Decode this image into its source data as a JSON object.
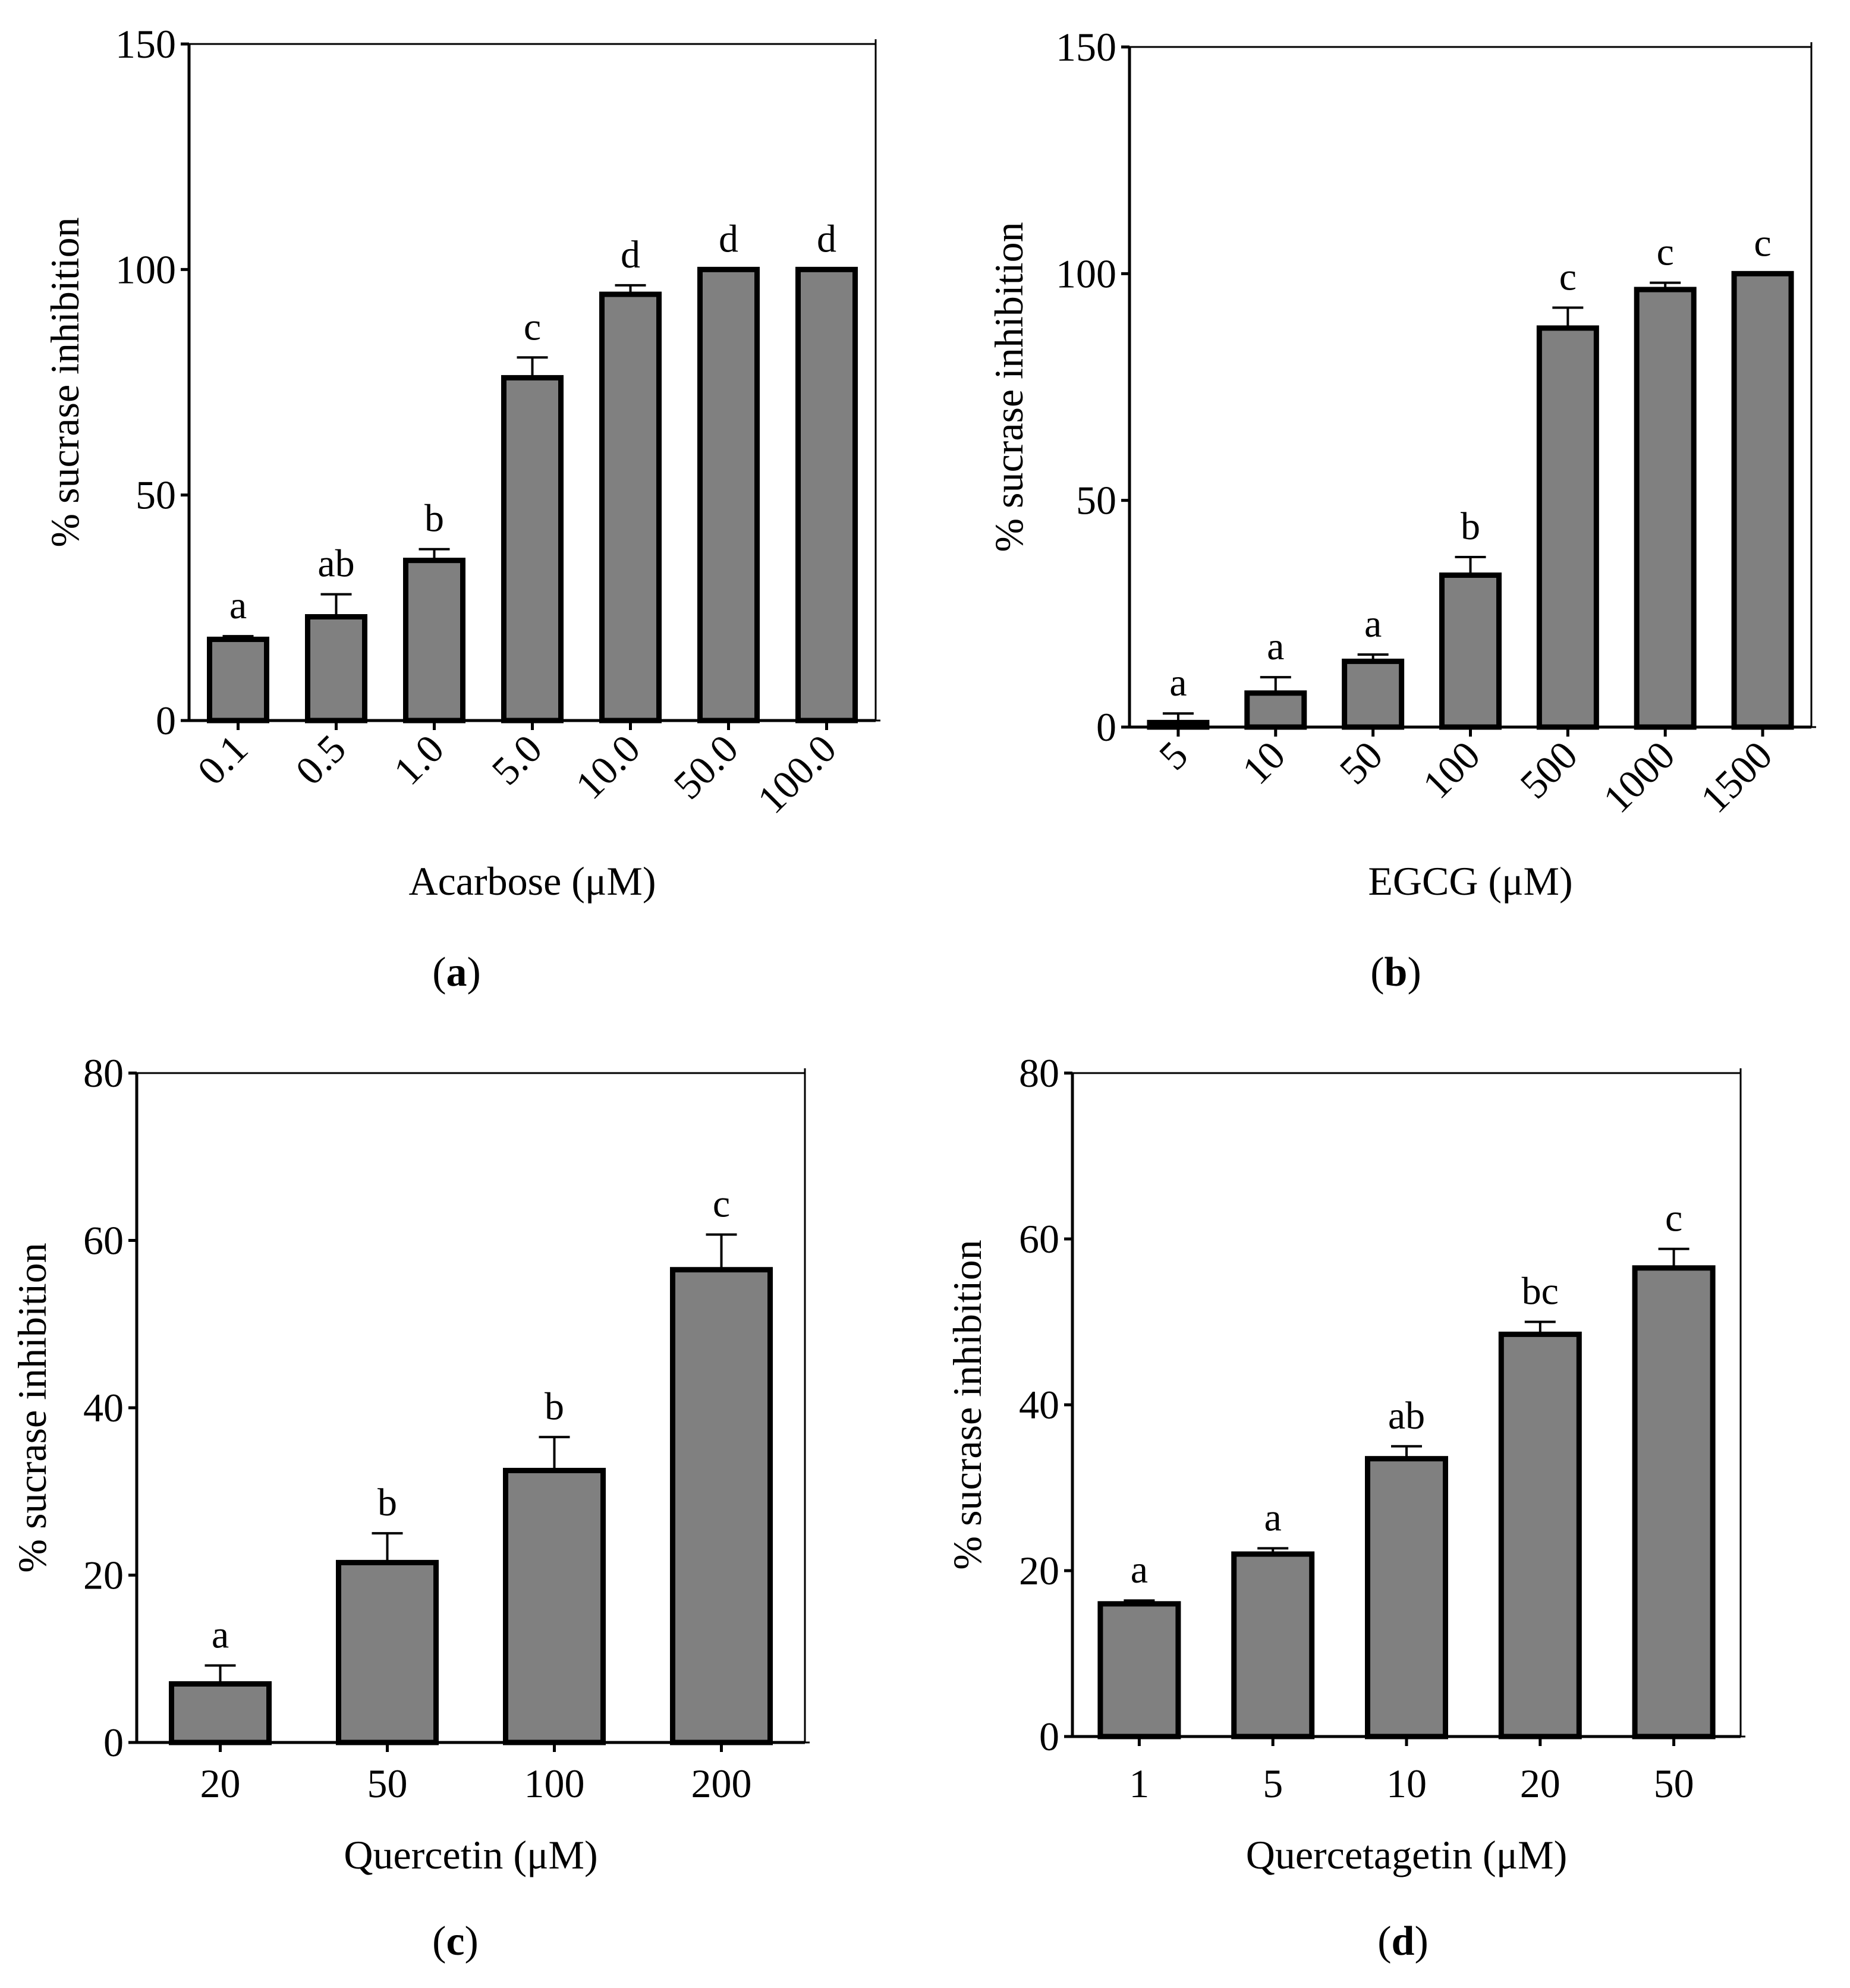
{
  "chart_data": [
    {
      "type": "bar",
      "panel": "a",
      "categories": [
        "0.1",
        "0.5",
        "1.0",
        "5.0",
        "10.0",
        "50.0",
        "100.0"
      ],
      "values": [
        18,
        23,
        35.5,
        76,
        94.5,
        100,
        100
      ],
      "errors": [
        0.7,
        5,
        2.5,
        4.5,
        2,
        0,
        0
      ],
      "significance": [
        "a",
        "ab",
        "b",
        "c",
        "d",
        "d",
        "d"
      ],
      "xlabel": "Acarbose (μM)",
      "ylabel": "% sucrase inhibition",
      "ylim": [
        0,
        150
      ],
      "yticks": [
        0,
        50,
        100,
        150
      ],
      "caption_prefix": "(",
      "caption_letter": "a",
      "caption_suffix": ")"
    },
    {
      "type": "bar",
      "panel": "b",
      "categories": [
        "5",
        "10",
        "50",
        "100",
        "500",
        "1000",
        "1500"
      ],
      "values": [
        1,
        7.5,
        14.5,
        33.5,
        88,
        96.5,
        100
      ],
      "errors": [
        2,
        3.5,
        1.5,
        4,
        4.5,
        1.5,
        0
      ],
      "significance": [
        "a",
        "a",
        "a",
        "b",
        "c",
        "c",
        "c"
      ],
      "xlabel": "EGCG (μM)",
      "ylabel": "% sucrase inhibition",
      "ylim": [
        0,
        150
      ],
      "yticks": [
        0,
        50,
        100,
        150
      ],
      "caption_prefix": "(",
      "caption_letter": "b",
      "caption_suffix": ")"
    },
    {
      "type": "bar",
      "panel": "c",
      "categories": [
        "20",
        "50",
        "100",
        "200"
      ],
      "values": [
        7,
        21.5,
        32.5,
        56.5
      ],
      "errors": [
        2.2,
        3.5,
        4,
        4.2
      ],
      "significance": [
        "a",
        "b",
        "b",
        "c"
      ],
      "xlabel": "Quercetin (μM)",
      "ylabel": "% sucrase inhibition",
      "ylim": [
        0,
        80
      ],
      "yticks": [
        0,
        20,
        40,
        60,
        80
      ],
      "caption_prefix": "(",
      "caption_letter": "c",
      "caption_suffix": ")"
    },
    {
      "type": "bar",
      "panel": "d",
      "categories": [
        "1",
        "5",
        "10",
        "20",
        "50"
      ],
      "values": [
        16,
        22,
        33.5,
        48.5,
        56.5
      ],
      "errors": [
        0.4,
        0.7,
        1.5,
        1.5,
        2.3
      ],
      "significance": [
        "a",
        "a",
        "ab",
        "bc",
        "c"
      ],
      "xlabel": "Quercetagetin (μM)",
      "ylabel": "% sucrase inhibition",
      "ylim": [
        0,
        80
      ],
      "yticks": [
        0,
        20,
        40,
        60,
        80
      ],
      "caption_prefix": "(",
      "caption_letter": "d",
      "caption_suffix": ")"
    }
  ],
  "colors": {
    "bar_fill": "#808080",
    "bar_stroke": "#000000",
    "axis": "#000000"
  }
}
